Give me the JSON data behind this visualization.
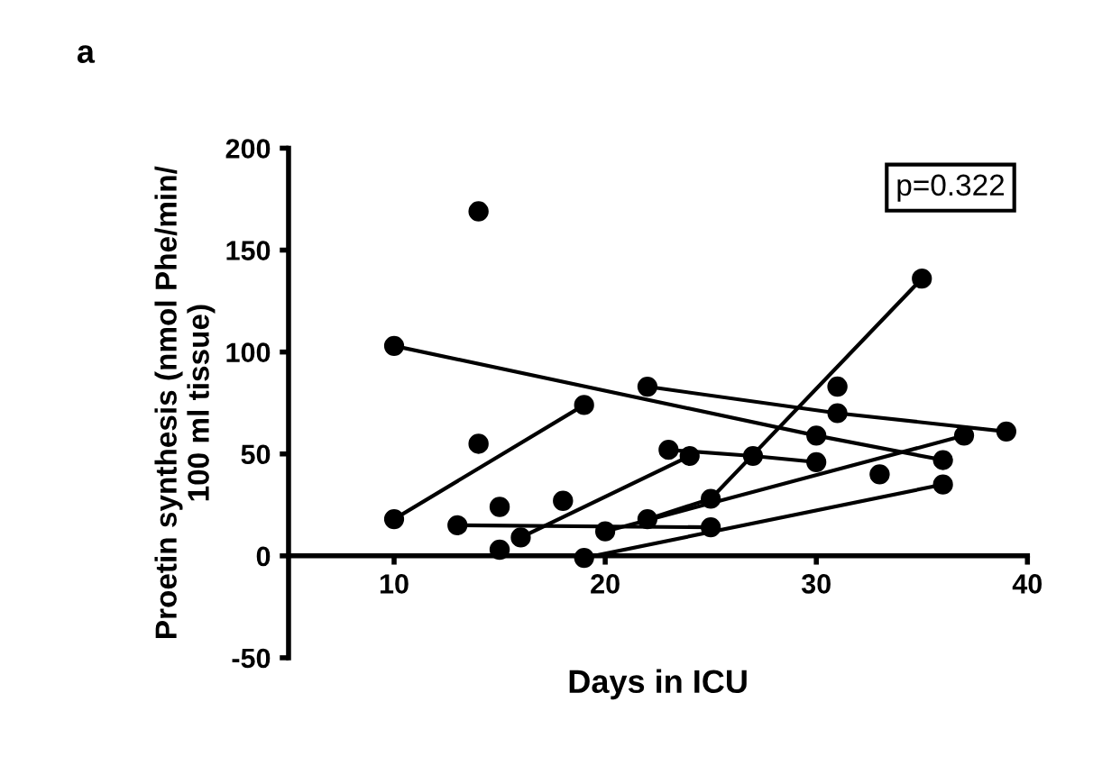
{
  "chart_data": {
    "type": "line",
    "title": "a",
    "xlabel": "Days in ICU",
    "ylabel": "Proetin synthesis (nmol Phe/min/\n100 ml tissue)",
    "xlim": [
      5,
      40
    ],
    "xticks": [
      10,
      20,
      30,
      40
    ],
    "ylim": [
      -50,
      200
    ],
    "yticks": [
      -50,
      0,
      50,
      100,
      150,
      200
    ],
    "grid": false,
    "legend": false,
    "marker": "circle",
    "line_style": "solid",
    "annotations": [
      "p=0.322"
    ],
    "series": [
      {
        "color": "#000000",
        "x": [
          10,
          30,
          36
        ],
        "values": [
          103,
          59,
          47
        ]
      },
      {
        "color": "#000000",
        "x": [
          22,
          31,
          39
        ],
        "values": [
          83,
          70,
          61
        ]
      },
      {
        "color": "#000000",
        "x": [
          10,
          19
        ],
        "values": [
          18,
          74
        ]
      },
      {
        "color": "#000000",
        "x": [
          13,
          25
        ],
        "values": [
          15,
          14
        ]
      },
      {
        "color": "#000000",
        "x": [
          16,
          24
        ],
        "values": [
          9,
          49
        ]
      },
      {
        "color": "#000000",
        "x": [
          23,
          27,
          30
        ],
        "values": [
          52,
          49,
          46
        ]
      },
      {
        "color": "#000000",
        "x": [
          19,
          36
        ],
        "values": [
          -1,
          35
        ]
      },
      {
        "color": "#000000",
        "x": [
          20,
          37
        ],
        "values": [
          12,
          59
        ]
      },
      {
        "color": "#000000",
        "x": [
          22,
          25,
          35
        ],
        "values": [
          18,
          28,
          136
        ]
      },
      {
        "type": "scatter",
        "color": "#000000",
        "x": [
          14,
          14,
          15,
          18,
          15,
          31,
          33
        ],
        "values": [
          169,
          55,
          24,
          27,
          3,
          83,
          40
        ]
      }
    ]
  }
}
